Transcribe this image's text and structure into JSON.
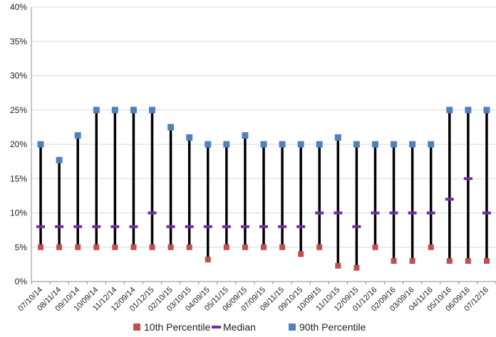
{
  "chart_data": {
    "type": "hi-lo-median",
    "title": "",
    "xlabel": "",
    "ylabel": "",
    "ylim": [
      0,
      40
    ],
    "y_ticks": [
      "0%",
      "5%",
      "10%",
      "15%",
      "20%",
      "25%",
      "30%",
      "35%",
      "40%"
    ],
    "grid": "horizontal",
    "legend_position": "bottom",
    "categories": [
      "07/10/14",
      "08/11/14",
      "09/10/14",
      "10/09/14",
      "11/12/14",
      "12/09/14",
      "01/12/15",
      "02/10/15",
      "03/10/15",
      "04/09/15",
      "05/11/15",
      "06/09/15",
      "07/09/15",
      "08/11/15",
      "09/10/15",
      "10/09/15",
      "11/10/15",
      "12/09/15",
      "01/12/16",
      "02/09/16",
      "03/09/16",
      "04/11/16",
      "05/10/16",
      "06/09/16",
      "07/12/16"
    ],
    "series": [
      {
        "name": "10th Percentile",
        "color": "#c0504d",
        "values": [
          5,
          5,
          5,
          5,
          5,
          5,
          5,
          5,
          5,
          3.2,
          5,
          5,
          5,
          5,
          4,
          5,
          2.3,
          2,
          5,
          3,
          3,
          5,
          3,
          3,
          3
        ]
      },
      {
        "name": "Median",
        "color": "#7030a0",
        "values": [
          8,
          8,
          8,
          8,
          8,
          8,
          10,
          8,
          8,
          8,
          8,
          8,
          8,
          8,
          8,
          10,
          10,
          8,
          10,
          10,
          10,
          10,
          12,
          15,
          10
        ]
      },
      {
        "name": "90th Percentile",
        "color": "#4f81bd",
        "values": [
          20,
          17.7,
          21.3,
          25,
          25,
          25,
          25,
          22.5,
          21,
          20,
          20,
          21.3,
          20,
          20,
          20,
          20,
          21,
          20,
          20,
          20,
          20,
          20,
          25,
          25,
          25
        ]
      }
    ]
  }
}
